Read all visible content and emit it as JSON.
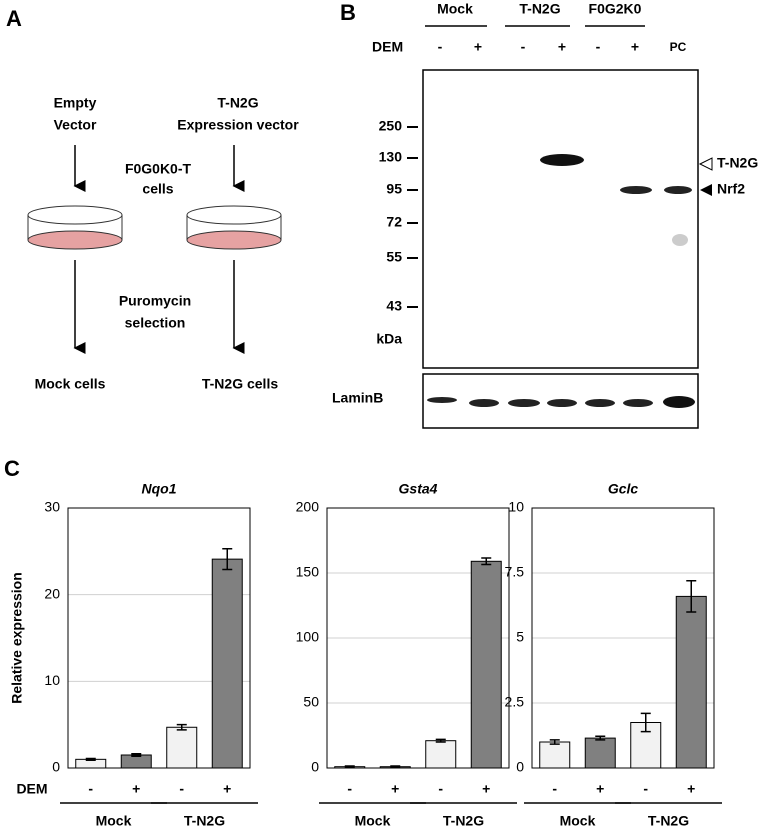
{
  "panel_a": {
    "label": "A",
    "left_vector": [
      "Empty",
      "Vector"
    ],
    "right_vector": [
      "T-N2G",
      "Expression vector"
    ],
    "cells": [
      "F0G0K0-T",
      "cells"
    ],
    "selection": [
      "Puromycin",
      "selection"
    ],
    "left_result": "Mock cells",
    "right_result": "T-N2G cells"
  },
  "panel_b": {
    "label": "B",
    "groups": [
      "Mock",
      "T-N2G",
      "F0G2K0"
    ],
    "treatment_label": "DEM",
    "lanes": [
      "-",
      "+",
      "-",
      "+",
      "-",
      "+",
      "PC"
    ],
    "markers": [
      "250",
      "130",
      "95",
      "72",
      "55",
      "43"
    ],
    "marker_unit": "kDa",
    "band_labels": [
      "T-N2G",
      "Nrf2"
    ],
    "loading_control": "LaminB"
  },
  "panel_c_label": "C",
  "chart_data": [
    {
      "type": "bar",
      "title": "Nqo1",
      "y_label": "Relative expression",
      "x_label": "DEM",
      "categories": [
        "-",
        "+",
        "-",
        "+"
      ],
      "groups": [
        "Mock",
        "T-N2G"
      ],
      "values": [
        1.0,
        1.5,
        4.7,
        24.1
      ],
      "errors": [
        0.1,
        0.15,
        0.3,
        1.2
      ],
      "colors": [
        "#f2f2f2",
        "#808080",
        "#f2f2f2",
        "#808080"
      ],
      "ylim": [
        0,
        30
      ],
      "yticks": [
        0,
        10,
        20,
        30
      ],
      "grid": true
    },
    {
      "type": "bar",
      "title": "Gsta4",
      "categories": [
        "-",
        "+",
        "-",
        "+"
      ],
      "groups": [
        "Mock",
        "T-N2G"
      ],
      "values": [
        1,
        1,
        21,
        159
      ],
      "errors": [
        0.5,
        0.5,
        1,
        2.5
      ],
      "colors": [
        "#f2f2f2",
        "#808080",
        "#f2f2f2",
        "#808080"
      ],
      "ylim": [
        0,
        200
      ],
      "yticks": [
        0,
        50,
        100,
        150,
        200
      ],
      "grid": true
    },
    {
      "type": "bar",
      "title": "Gclc",
      "categories": [
        "-",
        "+",
        "-",
        "+"
      ],
      "groups": [
        "Mock",
        "T-N2G"
      ],
      "values": [
        1.0,
        1.15,
        1.75,
        6.6
      ],
      "errors": [
        0.08,
        0.07,
        0.35,
        0.6
      ],
      "colors": [
        "#f2f2f2",
        "#808080",
        "#f2f2f2",
        "#808080"
      ],
      "ylim": [
        0,
        10
      ],
      "yticks": [
        0,
        2.5,
        5,
        7.5,
        10
      ],
      "grid": true
    }
  ]
}
